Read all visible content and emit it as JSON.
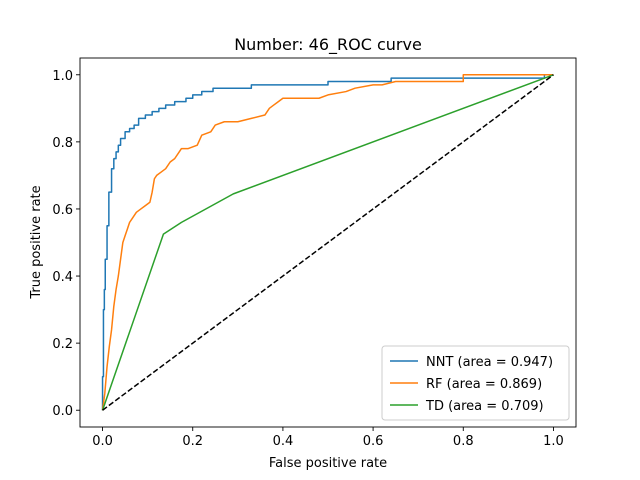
{
  "chart_data": {
    "type": "line",
    "title": "Number: 46_ROC curve",
    "xlabel": "False positive rate",
    "ylabel": "True positive rate",
    "xlim": [
      -0.05,
      1.05
    ],
    "ylim": [
      -0.05,
      1.05
    ],
    "xticks": [
      0.0,
      0.2,
      0.4,
      0.6,
      0.8,
      1.0
    ],
    "yticks": [
      0.0,
      0.2,
      0.4,
      0.6,
      0.8,
      1.0
    ],
    "xtick_labels": [
      "0.0",
      "0.2",
      "0.4",
      "0.6",
      "0.8",
      "1.0"
    ],
    "ytick_labels": [
      "0.0",
      "0.2",
      "0.4",
      "0.6",
      "0.8",
      "1.0"
    ],
    "grid": false,
    "legend_position": "lower-right",
    "series": [
      {
        "name": "NNT (area = 0.947)",
        "color": "#1f77b4",
        "x": [
          0.0,
          0.0,
          0.002,
          0.002,
          0.004,
          0.004,
          0.006,
          0.006,
          0.01,
          0.01,
          0.014,
          0.014,
          0.02,
          0.02,
          0.025,
          0.025,
          0.03,
          0.03,
          0.035,
          0.035,
          0.04,
          0.04,
          0.05,
          0.05,
          0.06,
          0.06,
          0.07,
          0.07,
          0.08,
          0.08,
          0.095,
          0.095,
          0.11,
          0.11,
          0.125,
          0.125,
          0.14,
          0.14,
          0.16,
          0.16,
          0.185,
          0.185,
          0.2,
          0.2,
          0.22,
          0.22,
          0.245,
          0.245,
          0.26,
          0.26,
          0.33,
          0.33,
          0.5,
          0.5,
          0.64,
          0.64,
          0.7,
          0.7,
          0.98,
          0.98,
          1.0
        ],
        "y": [
          0.0,
          0.1,
          0.1,
          0.3,
          0.3,
          0.36,
          0.36,
          0.45,
          0.45,
          0.55,
          0.55,
          0.65,
          0.65,
          0.72,
          0.72,
          0.75,
          0.75,
          0.77,
          0.77,
          0.79,
          0.79,
          0.81,
          0.81,
          0.83,
          0.83,
          0.84,
          0.84,
          0.85,
          0.85,
          0.87,
          0.87,
          0.88,
          0.88,
          0.89,
          0.89,
          0.9,
          0.9,
          0.91,
          0.91,
          0.92,
          0.92,
          0.93,
          0.93,
          0.94,
          0.94,
          0.95,
          0.95,
          0.96,
          0.96,
          0.96,
          0.96,
          0.97,
          0.97,
          0.98,
          0.98,
          0.99,
          0.99,
          0.99,
          0.99,
          1.0,
          1.0
        ]
      },
      {
        "name": "RF (area = 0.869)",
        "color": "#ff7f0e",
        "x": [
          0.0,
          0.005,
          0.01,
          0.015,
          0.02,
          0.025,
          0.03,
          0.035,
          0.04,
          0.045,
          0.05,
          0.055,
          0.06,
          0.065,
          0.075,
          0.085,
          0.095,
          0.105,
          0.11,
          0.115,
          0.12,
          0.13,
          0.14,
          0.15,
          0.16,
          0.17,
          0.175,
          0.19,
          0.21,
          0.22,
          0.24,
          0.25,
          0.27,
          0.3,
          0.33,
          0.36,
          0.37,
          0.38,
          0.39,
          0.4,
          0.48,
          0.5,
          0.54,
          0.56,
          0.6,
          0.62,
          0.65,
          0.8,
          0.8,
          1.0
        ],
        "y": [
          0.0,
          0.05,
          0.13,
          0.19,
          0.24,
          0.31,
          0.36,
          0.4,
          0.45,
          0.5,
          0.52,
          0.54,
          0.56,
          0.57,
          0.59,
          0.6,
          0.61,
          0.62,
          0.65,
          0.69,
          0.7,
          0.71,
          0.72,
          0.74,
          0.75,
          0.77,
          0.78,
          0.78,
          0.79,
          0.82,
          0.83,
          0.85,
          0.86,
          0.86,
          0.87,
          0.88,
          0.9,
          0.91,
          0.92,
          0.93,
          0.93,
          0.94,
          0.95,
          0.96,
          0.97,
          0.97,
          0.98,
          0.98,
          1.0,
          1.0
        ]
      },
      {
        "name": "TD (area = 0.709)",
        "color": "#2ca02c",
        "x": [
          0.0,
          0.135,
          0.175,
          0.29,
          1.0
        ],
        "y": [
          0.0,
          0.525,
          0.56,
          0.645,
          1.0
        ]
      },
      {
        "name": "",
        "color": "#000000",
        "dashed": true,
        "x": [
          0.0,
          1.0
        ],
        "y": [
          0.0,
          1.0
        ]
      }
    ]
  }
}
